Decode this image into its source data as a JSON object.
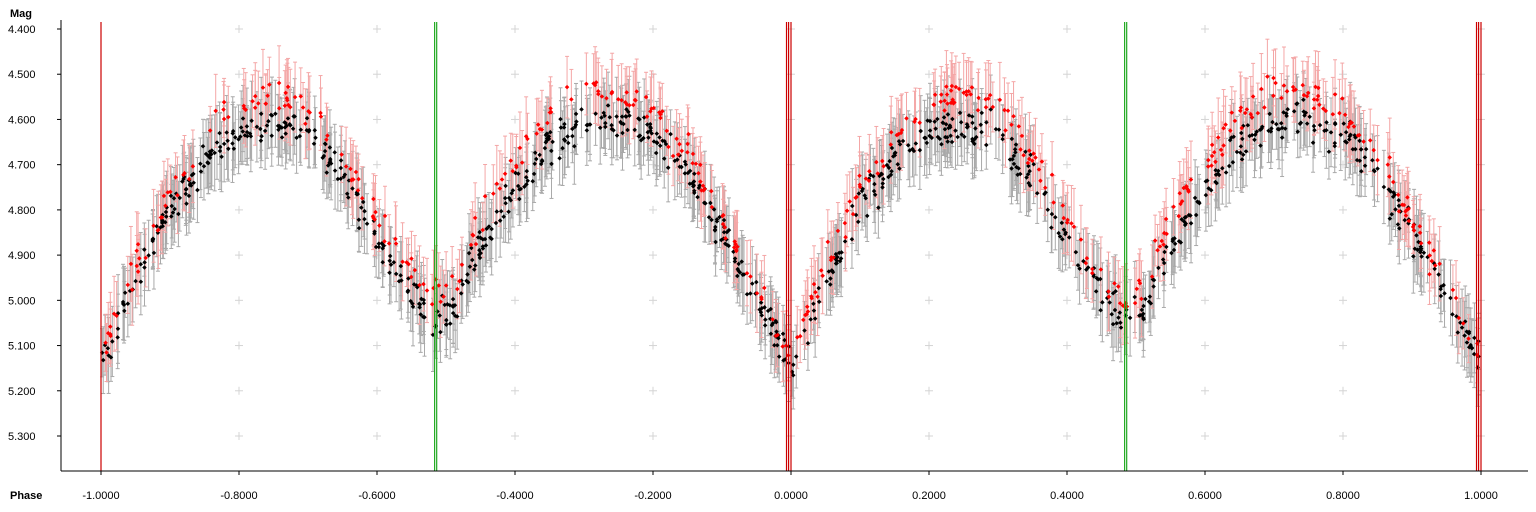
{
  "chart_data": {
    "type": "scatter",
    "title": "",
    "xlabel": "Phase",
    "ylabel": "Mag",
    "xlim": [
      -1.06,
      1.06
    ],
    "ylim": [
      5.38,
      4.39
    ],
    "y_inverted": true,
    "grid": "plus-markers",
    "x_ticks": [
      -1.0,
      -0.8,
      -0.6,
      -0.4,
      -0.2,
      0.0,
      0.2,
      0.4,
      0.6,
      0.8,
      1.0
    ],
    "x_tick_labels": [
      "-1.0000",
      "-0.8000",
      "-0.6000",
      "-0.4000",
      "-0.2000",
      "0.0000",
      "0.2000",
      "0.4000",
      "0.6000",
      "0.8000",
      "1.0000"
    ],
    "y_ticks": [
      4.4,
      4.5,
      4.6,
      4.7,
      4.8,
      4.9,
      5.0,
      5.1,
      5.2,
      5.3
    ],
    "y_tick_labels": [
      "4.400",
      "4.500",
      "4.600",
      "4.700",
      "4.800",
      "4.900",
      "5.000",
      "5.100",
      "5.200",
      "5.300"
    ],
    "markers": [
      {
        "x": -1.0,
        "color": "#cc0000"
      },
      {
        "x": -0.5165,
        "color": "#22aa22"
      },
      {
        "x": -0.5135,
        "color": "#22aa22"
      },
      {
        "x": -0.0065,
        "color": "#cc0000"
      },
      {
        "x": -0.0035,
        "color": "#cc0000"
      },
      {
        "x": 0.0,
        "color": "#cc0000"
      },
      {
        "x": 0.4835,
        "color": "#22aa22"
      },
      {
        "x": 0.4865,
        "color": "#22aa22"
      },
      {
        "x": 0.9935,
        "color": "#cc0000"
      },
      {
        "x": 0.9965,
        "color": "#cc0000"
      },
      {
        "x": 1.0,
        "color": "#cc0000"
      }
    ],
    "series": [
      {
        "color": "#000000",
        "error_color": "#a9a9a9",
        "light_curve": [
          [
            0.0,
            5.14
          ],
          [
            0.05,
            4.96
          ],
          [
            0.1,
            4.8
          ],
          [
            0.15,
            4.69
          ],
          [
            0.2,
            4.63
          ],
          [
            0.25,
            4.61
          ],
          [
            0.3,
            4.63
          ],
          [
            0.35,
            4.73
          ],
          [
            0.4,
            4.86
          ],
          [
            0.45,
            4.98
          ],
          [
            0.48,
            5.05
          ],
          [
            0.51,
            5.02
          ],
          [
            0.55,
            4.88
          ],
          [
            0.6,
            4.76
          ],
          [
            0.65,
            4.66
          ],
          [
            0.7,
            4.6
          ],
          [
            0.75,
            4.6
          ],
          [
            0.8,
            4.64
          ],
          [
            0.85,
            4.72
          ],
          [
            0.9,
            4.85
          ],
          [
            0.95,
            4.99
          ],
          [
            1.0,
            5.14
          ]
        ],
        "scatter_mag": 0.04,
        "error_mag": 0.07
      },
      {
        "color": "#ff0000",
        "error_color": "#f4a6a6",
        "light_curve": [
          [
            0.0,
            5.12
          ],
          [
            0.05,
            4.92
          ],
          [
            0.1,
            4.76
          ],
          [
            0.15,
            4.64
          ],
          [
            0.2,
            4.56
          ],
          [
            0.25,
            4.54
          ],
          [
            0.3,
            4.57
          ],
          [
            0.35,
            4.68
          ],
          [
            0.4,
            4.82
          ],
          [
            0.45,
            4.95
          ],
          [
            0.48,
            5.0
          ],
          [
            0.51,
            4.97
          ],
          [
            0.55,
            4.82
          ],
          [
            0.6,
            4.7
          ],
          [
            0.65,
            4.59
          ],
          [
            0.7,
            4.53
          ],
          [
            0.75,
            4.54
          ],
          [
            0.8,
            4.59
          ],
          [
            0.85,
            4.68
          ],
          [
            0.9,
            4.82
          ],
          [
            0.95,
            4.97
          ],
          [
            1.0,
            5.12
          ]
        ],
        "scatter_mag": 0.035,
        "error_mag": 0.07
      }
    ]
  }
}
